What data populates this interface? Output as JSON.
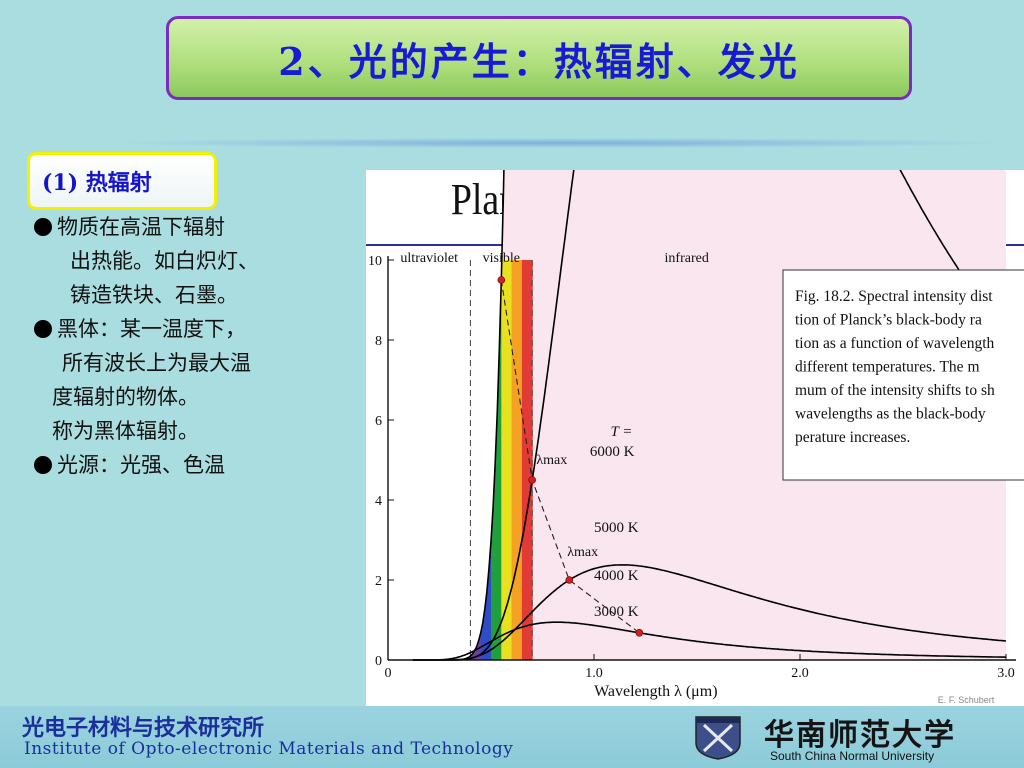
{
  "slide": {
    "title": "2、光的产生：热辐射、发光",
    "subtitle": "(1) 热辐射",
    "bullets": [
      "物质在高温下辐射",
      "出热能。如白炽灯、",
      "铸造铁块、石墨。",
      "黑体：某一温度下，",
      "所有波长上为最大温",
      "度辐射的物体。",
      "称为黑体辐射。",
      "光源：光强、色温"
    ]
  },
  "chart_data": {
    "type": "line",
    "title": "Plank’s Black-Body Radiation",
    "xlabel": "Wavelength  λ (μm)",
    "ylabel": "",
    "xlim": [
      0,
      3.0
    ],
    "ylim": [
      0,
      10
    ],
    "x_ticks": [
      "0",
      "1.0",
      "2.0",
      "3.0"
    ],
    "y_ticks": [
      "0",
      "2",
      "4",
      "6",
      "8",
      "10"
    ],
    "regions": [
      "ultraviolet",
      "visible",
      "infrared"
    ],
    "series": [
      {
        "name": "6000 K",
        "peak_x": 0.55,
        "peak_y": 9.5
      },
      {
        "name": "5000 K",
        "peak_x": 0.7,
        "peak_y": 4.5
      },
      {
        "name": "4000 K",
        "peak_x": 0.88,
        "peak_y": 2.0
      },
      {
        "name": "3000 K",
        "peak_x": 1.22,
        "peak_y": 0.68
      }
    ],
    "temperature_label": "T =",
    "lambda_max_label": "λmax",
    "caption": [
      "Fig. 18.2. Spectral intensity dist",
      "tion of Planck’s black-body ra",
      "tion as a function of wavelength",
      "different temperatures. The m",
      "mum of the intensity shifts to sh",
      "wavelengths as the black-body",
      "perature increases."
    ],
    "credit": "E. F. Schubert",
    "grid": false,
    "colors": {
      "curve": "#000000",
      "fill": "#fae6ee",
      "peak_marker": "#d02020",
      "rainbow": [
        "#6f3fa5",
        "#2f4cc8",
        "#1fa03a",
        "#e9e01f",
        "#f4a124",
        "#e23b35"
      ]
    }
  },
  "footer": {
    "institute_cn": "光电子材料与技术研究所",
    "institute_en": "Institute of Opto-electronic Materials and Technology",
    "university_cn": "华南师范大学",
    "university_en": "South China Normal University"
  }
}
